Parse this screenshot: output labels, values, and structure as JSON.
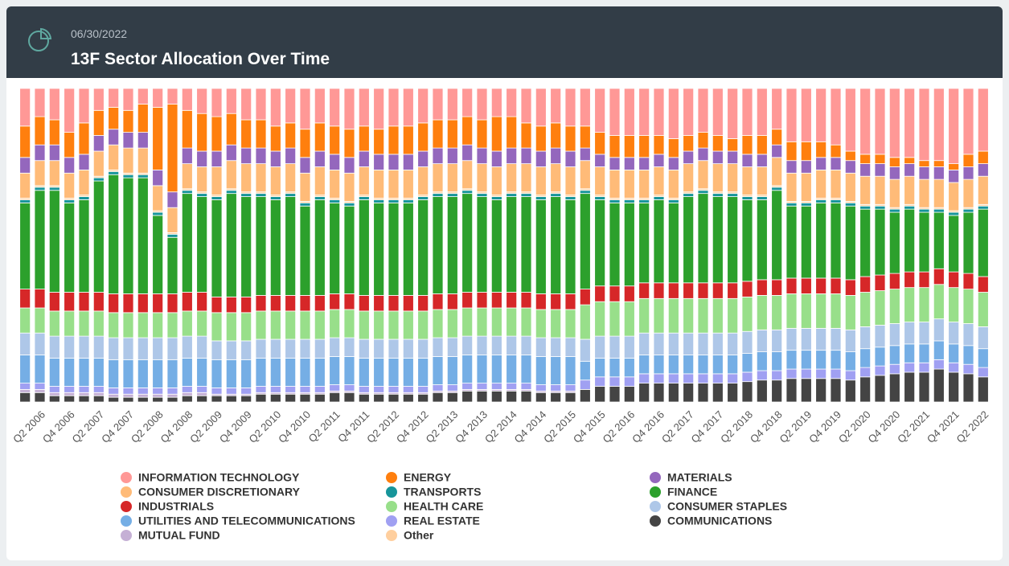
{
  "chart_data": {
    "type": "stacked-bar",
    "title": "13F Sector Allocation Over Time",
    "subtitle": "06/30/2022",
    "categories": [
      null,
      "Q2 2006",
      null,
      "Q4 2006",
      null,
      "Q2 2007",
      null,
      "Q4 2007",
      null,
      "Q2 2008",
      null,
      "Q4 2008",
      null,
      "Q2 2009",
      null,
      "Q4 2009",
      null,
      "Q2 2010",
      null,
      "Q4 2010",
      null,
      "Q2 2011",
      null,
      "Q4 2011",
      null,
      "Q2 2012",
      null,
      "Q4 2012",
      null,
      "Q2 2013",
      null,
      "Q4 2013",
      null,
      "Q2 2014",
      null,
      "Q4 2014",
      null,
      "Q2 2015",
      null,
      "Q4 2015",
      null,
      "Q2 2016",
      null,
      "Q4 2016",
      null,
      "Q2 2017",
      null,
      "Q4 2017",
      null,
      "Q2 2018",
      null,
      "Q4 2018",
      null,
      "Q2 2019",
      null,
      "Q4 2019",
      null,
      "Q2 2020",
      null,
      "Q4 2020",
      null,
      "Q2 2021",
      null,
      "Q4 2021",
      null,
      "Q2 2022"
    ],
    "ylim": [
      0,
      100
    ],
    "series": [
      {
        "name": "INFORMATION TECHNOLOGY",
        "color": "#ff9896",
        "values": [
          12,
          9,
          10,
          14,
          11,
          7,
          6,
          7,
          5,
          6,
          5,
          7,
          8,
          9,
          8,
          10,
          10,
          12,
          11,
          13,
          11,
          12,
          13,
          12,
          13,
          12,
          12,
          11,
          10,
          10,
          9,
          10,
          9,
          9,
          11,
          12,
          11,
          12,
          12,
          14,
          15,
          15,
          15,
          15,
          16,
          15,
          14,
          15,
          16,
          15,
          15,
          13,
          17,
          17,
          17,
          18,
          20,
          21,
          21,
          22,
          22,
          23,
          23,
          24,
          21,
          20
        ]
      },
      {
        "name": "ENERGY",
        "color": "#ff7f0e",
        "values": [
          10,
          9,
          8,
          8,
          10,
          8,
          7,
          7,
          9,
          20,
          28,
          12,
          12,
          11,
          10,
          9,
          9,
          8,
          8,
          9,
          9,
          9,
          9,
          8,
          8,
          9,
          9,
          9,
          9,
          9,
          9,
          9,
          11,
          10,
          8,
          8,
          8,
          8,
          7,
          7,
          7,
          7,
          7,
          6,
          6,
          5,
          5,
          5,
          4,
          6,
          6,
          5,
          6,
          6,
          5,
          4,
          3,
          3,
          3,
          3,
          2,
          2,
          2,
          2,
          4,
          4
        ]
      },
      {
        "name": "MATERIALS",
        "color": "#9467bd",
        "values": [
          5,
          5,
          5,
          5,
          5,
          5,
          5,
          5,
          5,
          5,
          5,
          5,
          5,
          5,
          5,
          5,
          5,
          5,
          5,
          5,
          5,
          5,
          5,
          5,
          5,
          5,
          5,
          5,
          5,
          5,
          5,
          5,
          5,
          5,
          5,
          5,
          5,
          5,
          4,
          4,
          4,
          4,
          4,
          4,
          4,
          4,
          4,
          4,
          4,
          4,
          4,
          4,
          4,
          4,
          4,
          4,
          4,
          4,
          4,
          4,
          4,
          4,
          4,
          4,
          4,
          4
        ]
      },
      {
        "name": "CONSUMER DISCRETIONARY",
        "color": "#ffbb78",
        "values": [
          8,
          8,
          8,
          8,
          8,
          8,
          8,
          8,
          8,
          8,
          8,
          8,
          8,
          9,
          9,
          9,
          9,
          9,
          9,
          9,
          9,
          9,
          9,
          9,
          9,
          9,
          9,
          9,
          9,
          9,
          9,
          9,
          9,
          9,
          9,
          9,
          9,
          9,
          9,
          9,
          9,
          9,
          9,
          9,
          9,
          9,
          9,
          9,
          9,
          9,
          9,
          9,
          9,
          9,
          9,
          9,
          9,
          9,
          9,
          9,
          9,
          9,
          9,
          9,
          9,
          9
        ]
      },
      {
        "name": "TRANSPORTS",
        "color": "#17959a",
        "values": [
          1,
          1,
          1,
          1,
          1,
          1,
          1,
          1,
          1,
          1,
          1,
          1,
          1,
          1,
          1,
          1,
          1,
          1,
          1,
          1,
          1,
          1,
          1,
          1,
          1,
          1,
          1,
          1,
          1,
          1,
          1,
          1,
          1,
          1,
          1,
          1,
          1,
          1,
          1,
          1,
          1,
          1,
          1,
          1,
          1,
          1,
          1,
          1,
          1,
          1,
          1,
          1,
          1,
          1,
          1,
          1,
          1,
          1,
          1,
          1,
          1,
          1,
          1,
          1,
          1,
          1
        ]
      },
      {
        "name": "FINANCE",
        "color": "#2ca02c",
        "values": [
          27.5,
          31.5,
          32.5,
          28.5,
          29.5,
          35.5,
          38,
          37,
          37,
          25,
          18,
          31.5,
          30.5,
          31,
          33,
          32,
          31.5,
          30.5,
          31.5,
          28.5,
          30.5,
          29,
          28,
          30.5,
          29.5,
          29.5,
          29.5,
          30.5,
          31,
          31,
          31.5,
          30.5,
          29.5,
          30.5,
          30.5,
          30,
          31,
          30,
          30.5,
          27.5,
          26.5,
          26.5,
          25.5,
          26.5,
          25.5,
          27.5,
          28.5,
          27.5,
          27.5,
          26,
          25.5,
          28.5,
          23,
          23,
          24,
          24,
          23.5,
          21.5,
          21,
          19.5,
          20,
          19,
          18,
          18,
          19.5,
          21.5
        ]
      },
      {
        "name": "INDUSTRIALS",
        "color": "#d62728",
        "values": [
          6,
          6,
          6,
          6,
          6,
          6,
          6,
          6,
          6,
          6,
          6,
          6,
          6,
          5,
          5,
          5,
          5,
          5,
          5,
          5,
          5,
          5,
          5,
          5,
          5,
          5,
          5,
          5,
          5,
          5,
          5,
          5,
          5,
          5,
          5,
          5,
          5,
          5,
          5,
          5,
          5,
          5,
          5,
          5,
          5,
          5,
          5,
          5,
          5,
          5,
          5,
          5,
          5,
          5,
          5,
          5,
          5,
          5,
          5,
          5,
          5,
          5,
          5,
          5,
          5,
          5
        ]
      },
      {
        "name": "HEALTH CARE",
        "color": "#98df8a",
        "values": [
          8,
          8,
          8,
          8,
          8,
          8,
          8,
          8,
          8,
          8,
          8,
          8,
          8,
          9,
          9,
          9,
          9,
          9,
          9,
          9,
          9,
          9,
          9,
          9,
          9,
          9,
          9,
          9,
          9,
          9,
          9,
          9,
          9,
          9,
          9,
          9,
          9,
          9,
          11,
          11,
          11,
          11,
          11,
          11,
          11,
          11,
          11,
          11,
          11,
          11,
          11,
          11,
          11,
          11,
          11,
          11,
          11,
          11,
          11,
          11,
          11,
          11,
          11,
          11,
          11,
          11
        ]
      },
      {
        "name": "CONSUMER STAPLES",
        "color": "#aec7e8",
        "values": [
          7,
          7,
          7,
          7,
          7,
          7,
          7,
          7,
          7,
          7,
          7,
          7,
          7,
          6,
          6,
          6,
          6,
          6,
          6,
          6,
          6,
          6,
          6,
          6,
          6,
          6,
          6,
          6,
          6,
          6,
          6,
          6,
          6,
          6,
          6,
          6,
          6,
          6,
          7,
          7,
          7,
          7,
          7,
          7,
          7,
          7,
          7,
          7,
          7,
          7,
          7,
          7,
          7,
          7,
          7,
          7,
          7,
          7,
          7,
          7,
          7,
          7,
          7,
          7,
          7,
          7
        ]
      },
      {
        "name": "UTILITIES AND TELECOMMUNICATIONS",
        "color": "#75aee5",
        "values": [
          9,
          9,
          9,
          9,
          9,
          9,
          9,
          9,
          9,
          9,
          9,
          9,
          9,
          9,
          9,
          9,
          9,
          9,
          9,
          9,
          9,
          9,
          9,
          9,
          9,
          9,
          9,
          9,
          9,
          9,
          9,
          9,
          9,
          9,
          9,
          9,
          9,
          9,
          6,
          6,
          6,
          6,
          6,
          6,
          6,
          6,
          6,
          6,
          6,
          6,
          6,
          6,
          6,
          6,
          6,
          6,
          6,
          6,
          6,
          6,
          6,
          6,
          6,
          6,
          6,
          6
        ]
      },
      {
        "name": "REAL ESTATE",
        "color": "#a0a0f2",
        "values": [
          2,
          2,
          2,
          2,
          2,
          2,
          2,
          2,
          2,
          2,
          2,
          2,
          2,
          2,
          2,
          2,
          2,
          2,
          2,
          2,
          2,
          2,
          2,
          2,
          2,
          2,
          2,
          2,
          2,
          2,
          2,
          2,
          2,
          2,
          2,
          2,
          2,
          2,
          3,
          3,
          3,
          3,
          3,
          3,
          3,
          3,
          3,
          3,
          3,
          3,
          3,
          3,
          3,
          3,
          3,
          3,
          3,
          3,
          3,
          3,
          3,
          3,
          3,
          3,
          3,
          3
        ]
      },
      {
        "name": "COMMUNICATIONS",
        "color": "#444444",
        "values": [
          3,
          3,
          2,
          2,
          2,
          2,
          1.5,
          1.5,
          1.5,
          1.5,
          1.5,
          2,
          2,
          2,
          2,
          2,
          2.5,
          2.5,
          2.5,
          2.5,
          2.5,
          3,
          3,
          2.5,
          2.5,
          2.5,
          2.5,
          2.5,
          3,
          3,
          3.5,
          3.5,
          3.5,
          3.5,
          3.5,
          3,
          3,
          3,
          4,
          5,
          5,
          5,
          6,
          6,
          6,
          6,
          6,
          6,
          6,
          6.5,
          7,
          7,
          7.5,
          7.5,
          7.5,
          7.5,
          7,
          8,
          8.5,
          9,
          9.5,
          9.5,
          10.5,
          9.5,
          9,
          8
        ]
      },
      {
        "name": "MUTUAL FUND",
        "color": "#c5b0d5",
        "values": [
          1,
          1,
          1,
          1,
          1,
          1,
          1,
          1,
          1,
          1,
          1,
          1,
          1,
          0.5,
          0.5,
          0.5,
          0.5,
          0.5,
          0.5,
          0.5,
          0.5,
          0.5,
          0.5,
          0.5,
          0.5,
          0.5,
          0.5,
          0.5,
          0.5,
          0.5,
          0.5,
          0.5,
          0.5,
          0.5,
          0.5,
          0.5,
          0.5,
          0.5,
          0,
          0,
          0,
          0,
          0,
          0,
          0,
          0,
          0,
          0,
          0,
          0,
          0,
          0,
          0,
          0,
          0,
          0,
          0,
          0,
          0,
          0,
          0,
          0,
          0,
          0,
          0,
          0
        ]
      },
      {
        "name": "Other",
        "color": "#ffcf9e",
        "values": [
          0.5,
          0.5,
          0.5,
          0.5,
          0.5,
          0.5,
          0.5,
          0.5,
          0.5,
          0.5,
          0.5,
          0.5,
          0.5,
          0.5,
          0.5,
          0.5,
          0.5,
          0.5,
          0.5,
          0.5,
          0.5,
          0.5,
          0.5,
          0.5,
          0.5,
          0.5,
          0.5,
          0.5,
          0.5,
          0.5,
          0.5,
          0.5,
          0.5,
          0.5,
          0.5,
          0.5,
          0.5,
          0.5,
          0.5,
          0.5,
          0.5,
          0.5,
          0.5,
          0.5,
          0.5,
          0.5,
          0.5,
          0.5,
          0.5,
          0.5,
          0.5,
          0.5,
          0.5,
          0.5,
          0.5,
          0.5,
          0.5,
          0.5,
          0.5,
          0.5,
          0.5,
          0.5,
          0.5,
          0.5,
          0.5,
          0.5
        ]
      }
    ]
  }
}
